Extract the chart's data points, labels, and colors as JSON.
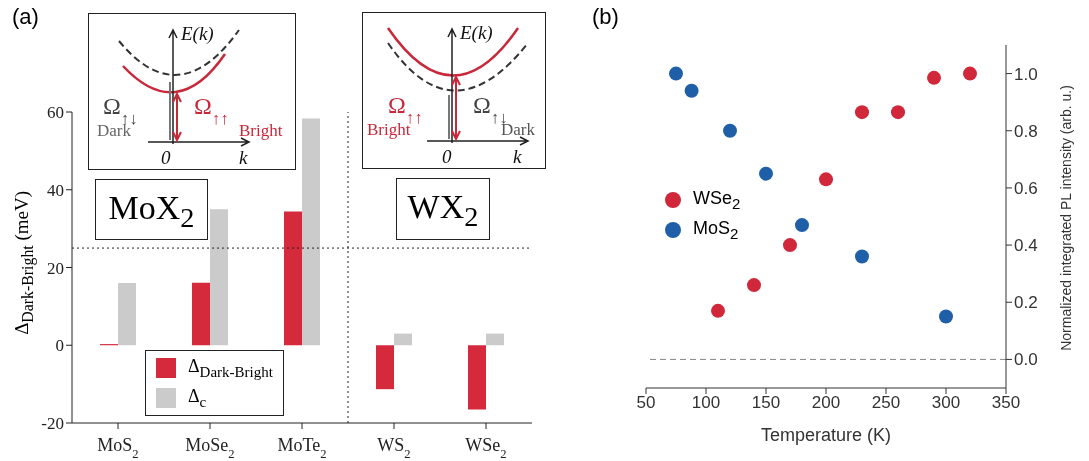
{
  "chart_data": [
    {
      "type": "bar",
      "title": "(a)",
      "ylabel": "Δ$_{Dark-Bright}$ (meV)",
      "categories": [
        "MoS$_{2}$",
        "MoSe$_{2}$",
        "MoTe$_{2}$",
        "WS$_{2}$",
        "WSe$_{2}$"
      ],
      "series": [
        {
          "name": "Δ$_{Dark-Bright}$",
          "color": "#d42a3c",
          "values": [
            0.3,
            16.1,
            34.4,
            -11.3,
            -16.5
          ]
        },
        {
          "name": "Δ$_{c}$",
          "color": "#cbcbcb",
          "values": [
            16,
            35,
            58.3,
            3,
            3
          ]
        }
      ],
      "ylim": [
        -20,
        60
      ],
      "yticks": [
        -20,
        0,
        20,
        40,
        60
      ],
      "legend": "bottom",
      "ref_lines": [
        {
          "axis": "y",
          "value": 25,
          "line_style": "dotted",
          "color": "#222222"
        }
      ],
      "annotations": [
        "MoX$_{2}$",
        "WX$_{2}$",
        "E(k)",
        "Ω$_{↑↓}$",
        "Dark",
        "Ω$_{↑↑}$",
        "Bright",
        "0",
        "k",
        "E(k)",
        "Ω$_{↑↑}$",
        "Bright",
        "Ω$_{↑↓}$",
        "Dark",
        "0",
        "k"
      ]
    },
    {
      "type": "scatter",
      "title": "(b)",
      "xlabel": "Temperature (K)",
      "y2label": "Normalized integrated PL intensity (arb. u.)",
      "series": [
        {
          "name": "WSe$_{2}$",
          "color": "#d0283a",
          "axis": "y2",
          "x": [
            110,
            140,
            170,
            200,
            230,
            260,
            290,
            320
          ],
          "values": [
            0.17,
            0.26,
            0.4,
            0.63,
            0.865,
            0.865,
            0.985,
            1.0
          ]
        },
        {
          "name": "MoS$_{2}$",
          "color": "#1f5fa8",
          "axis": "y2",
          "x": [
            75,
            88,
            120,
            150,
            180,
            230,
            300
          ],
          "values": [
            1.0,
            0.94,
            0.8,
            0.65,
            0.47,
            0.36,
            0.15
          ]
        }
      ],
      "xlim": [
        50,
        350
      ],
      "xticks": [
        50,
        100,
        150,
        200,
        250,
        300,
        350
      ],
      "y2lim": [
        -0.1,
        1.1
      ],
      "y2ticks": [
        {
          "value": 0,
          "label": "0.0"
        },
        {
          "value": 0.2,
          "label": "0.2"
        },
        {
          "value": 0.4,
          "label": "0.4"
        },
        {
          "value": 0.6,
          "label": "0.6"
        },
        {
          "value": 0.8,
          "label": "0.8"
        },
        {
          "value": 1,
          "label": "1.0"
        }
      ],
      "marker": "circle",
      "legend": "left",
      "ref_lines": [
        {
          "axis": "y2",
          "value": 0,
          "line_style": "dashed",
          "color": "#888888"
        }
      ]
    }
  ]
}
